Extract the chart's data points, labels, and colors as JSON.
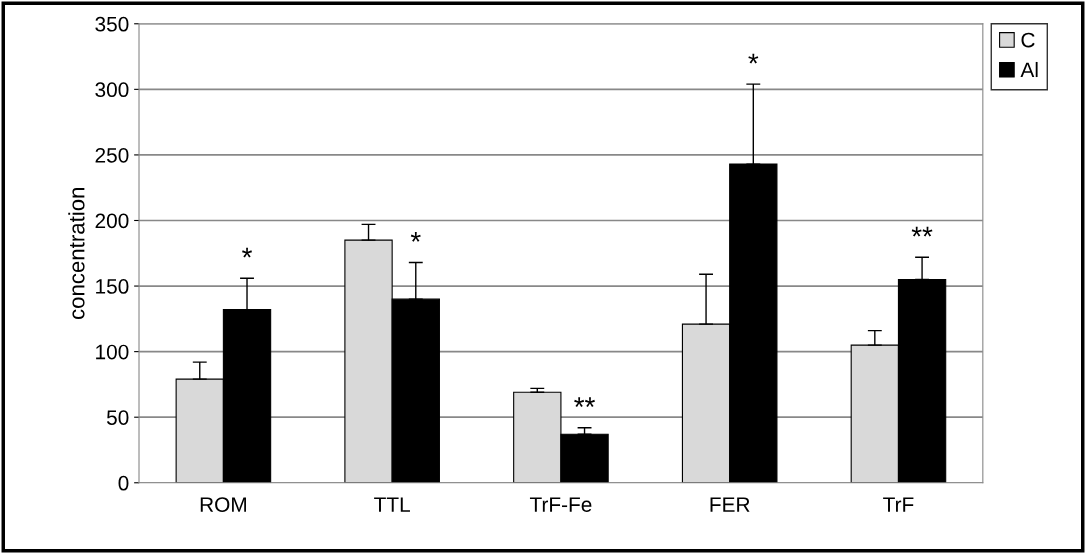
{
  "chart_data": {
    "type": "bar",
    "ylabel": "concentration",
    "categories": [
      "ROM",
      "TTL",
      "TrF-Fe",
      "FER",
      "TrF"
    ],
    "series": [
      {
        "name": "C",
        "color": "#d9d9d9",
        "values": [
          79,
          185,
          69,
          121,
          105
        ],
        "errors": [
          [
            79,
            92
          ],
          [
            185,
            197
          ],
          [
            69,
            72
          ],
          [
            121,
            159
          ],
          [
            105,
            116
          ]
        ]
      },
      {
        "name": "Al",
        "color": "#000000",
        "values": [
          132,
          140,
          37,
          243,
          155
        ],
        "errors": [
          [
            132,
            156
          ],
          [
            140,
            168
          ],
          [
            37,
            42
          ],
          [
            243,
            304
          ],
          [
            155,
            172
          ]
        ]
      }
    ],
    "annotations": [
      "*",
      "*",
      "**",
      "*",
      "**"
    ],
    "ylim": [
      0,
      350
    ],
    "yticks": [
      0,
      50,
      100,
      150,
      200,
      250,
      300,
      350
    ],
    "grid": "y",
    "legend": "top right"
  }
}
